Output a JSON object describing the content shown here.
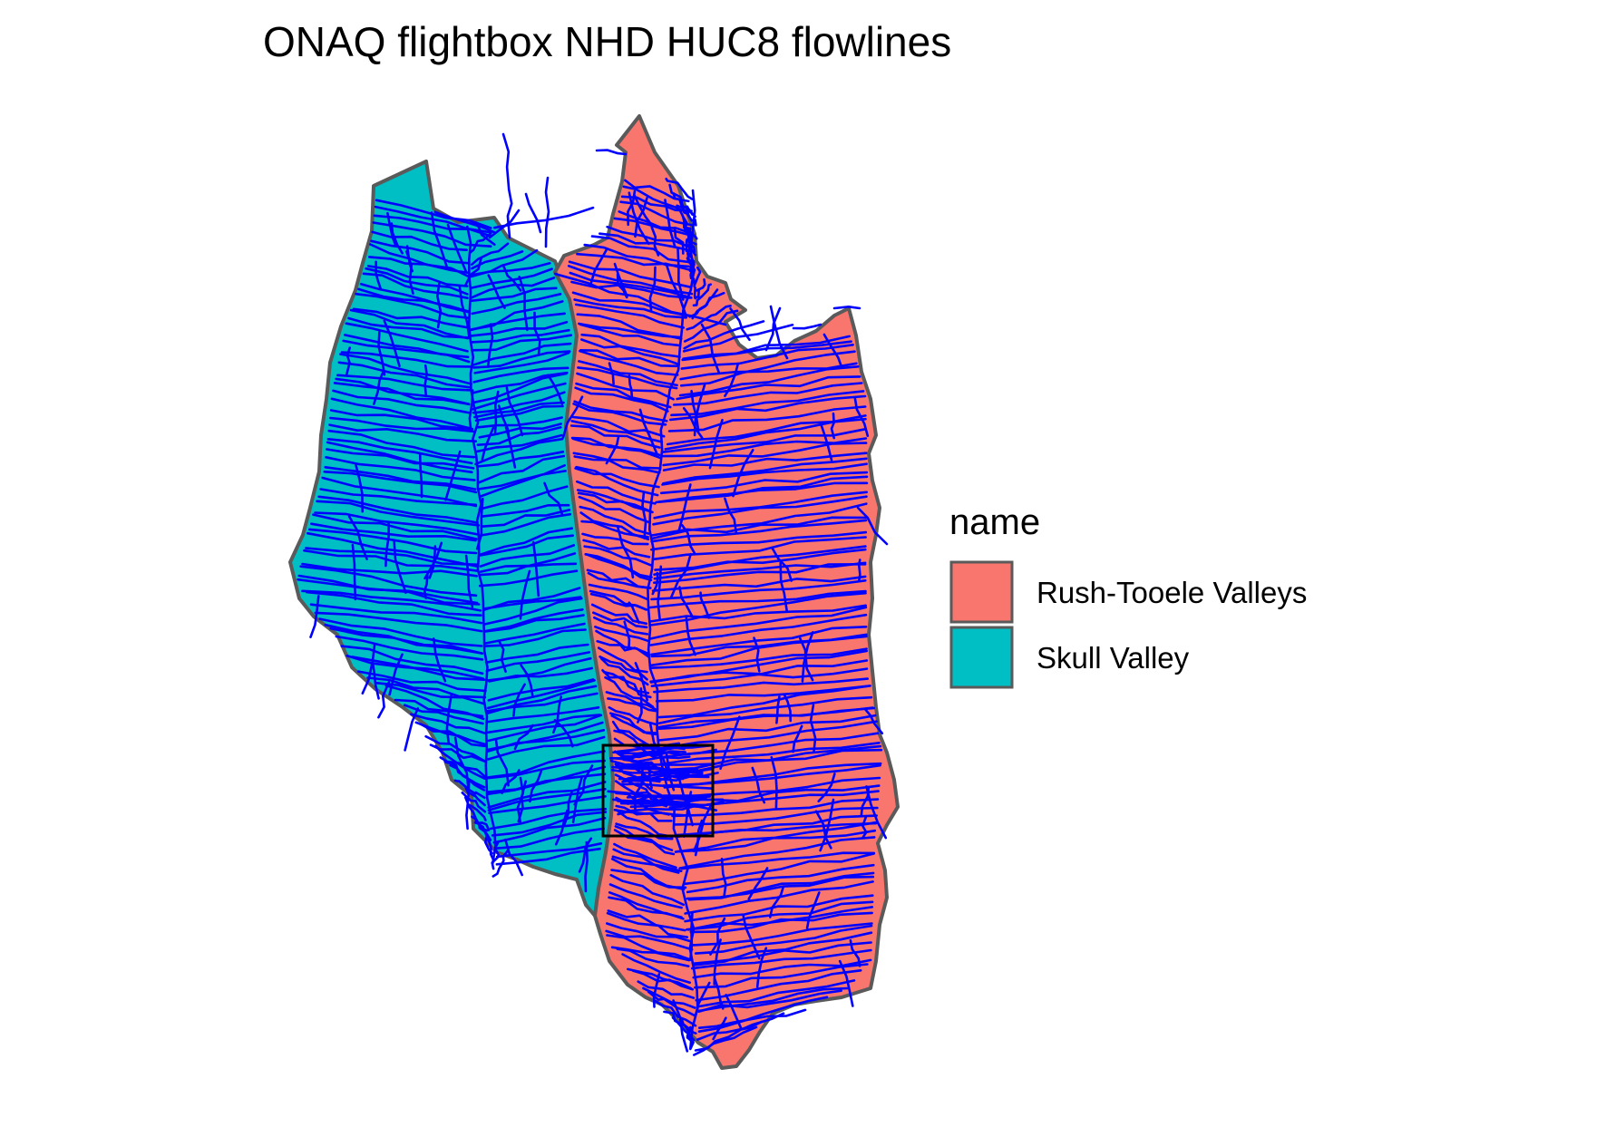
{
  "title": "ONAQ flightbox NHD HUC8 flowlines",
  "legend": {
    "title": "name",
    "items": [
      {
        "label": "Rush-Tooele Valleys",
        "color": "#F8766D"
      },
      {
        "label": "Skull Valley",
        "color": "#00BFC4"
      }
    ]
  },
  "colors": {
    "flowline": "#0000FF",
    "basin_border": "#5A5A5A",
    "flightbox": "#000000"
  }
}
